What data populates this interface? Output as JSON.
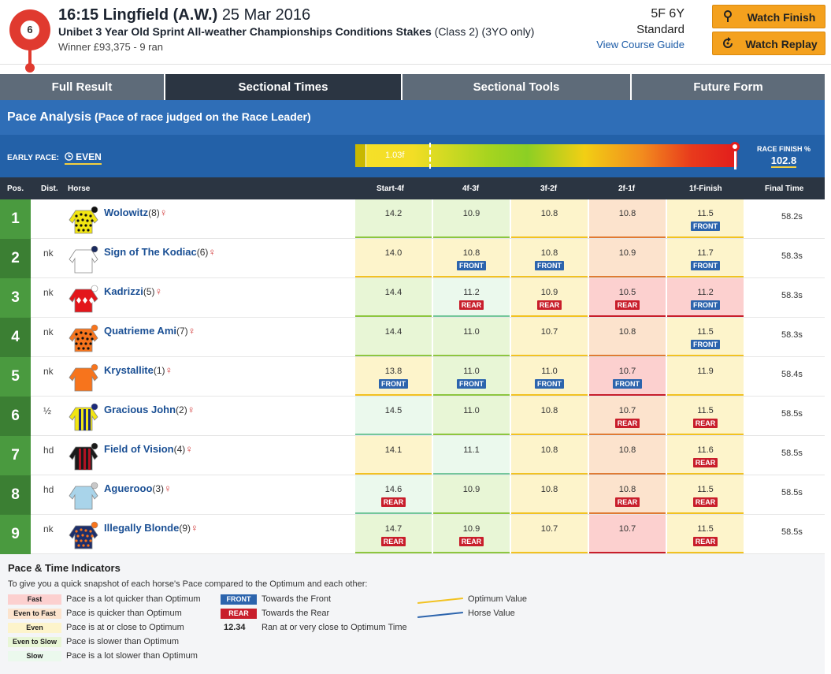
{
  "header": {
    "race_number": "6",
    "time_course": "16:15 Lingfield (A.W.)",
    "date": "25 Mar 2016",
    "race_name": "Unibet 3 Year Old Sprint All-weather Championships Conditions Stakes",
    "race_class": "(Class 2) (3YO only)",
    "winner_info": "Winner £93,375 - 9 ran",
    "distance": "5F 6Y",
    "going": "Standard",
    "course_guide_link": "View Course Guide",
    "watch_finish_label": "Watch Finish",
    "watch_replay_label": "Watch Replay",
    "watch_finish_icon": "location-pin-icon",
    "watch_replay_icon": "replay-icon"
  },
  "tabs": [
    {
      "label": "Full Result",
      "active": false
    },
    {
      "label": "Sectional Times",
      "active": true
    },
    {
      "label": "Sectional Tools",
      "active": false
    },
    {
      "label": "Future Form",
      "active": false
    }
  ],
  "pace": {
    "title": "Pace Analysis",
    "subtitle": "(Pace of race judged on the Race Leader)",
    "early_pace_label": "EARLY PACE:",
    "early_pace_value": "EVEN",
    "bar_marker_label": "1.03f",
    "race_finish_label": "RACE FINISH %",
    "race_finish_value": "102.8"
  },
  "table": {
    "columns": [
      "Pos.",
      "Dist.",
      "Horse",
      "Start-4f",
      "4f-3f",
      "3f-2f",
      "2f-1f",
      "1f-Finish",
      "Final Time"
    ],
    "rows": [
      {
        "pos": "1",
        "dist": "",
        "horse": "Wolowitz",
        "draw": "(8)",
        "silk": "yellow-black-spots",
        "final": "58.2s",
        "sections": [
          {
            "v": "14.2",
            "c": "ets",
            "tag": ""
          },
          {
            "v": "10.9",
            "c": "ets",
            "tag": ""
          },
          {
            "v": "10.8",
            "c": "even",
            "tag": ""
          },
          {
            "v": "10.8",
            "c": "etf",
            "tag": ""
          },
          {
            "v": "11.5",
            "c": "even",
            "tag": "FRONT"
          }
        ]
      },
      {
        "pos": "2",
        "dist": "nk",
        "horse": "Sign of The Kodiac",
        "draw": "(6)",
        "silk": "white",
        "final": "58.3s",
        "sections": [
          {
            "v": "14.0",
            "c": "even",
            "tag": ""
          },
          {
            "v": "10.8",
            "c": "even",
            "tag": "FRONT"
          },
          {
            "v": "10.8",
            "c": "even",
            "tag": "FRONT"
          },
          {
            "v": "10.9",
            "c": "etf",
            "tag": ""
          },
          {
            "v": "11.7",
            "c": "even",
            "tag": "FRONT"
          }
        ]
      },
      {
        "pos": "3",
        "dist": "nk",
        "horse": "Kadrizzi",
        "draw": "(5)",
        "silk": "red-white-diamonds",
        "final": "58.3s",
        "sections": [
          {
            "v": "14.4",
            "c": "ets",
            "tag": ""
          },
          {
            "v": "11.2",
            "c": "slow",
            "tag": "REAR"
          },
          {
            "v": "10.9",
            "c": "even",
            "tag": "REAR"
          },
          {
            "v": "10.5",
            "c": "fast",
            "tag": "REAR"
          },
          {
            "v": "11.2",
            "c": "fast",
            "tag": "FRONT"
          }
        ]
      },
      {
        "pos": "4",
        "dist": "nk",
        "horse": "Quatrieme Ami",
        "draw": "(7)",
        "silk": "orange-black-spots",
        "final": "58.3s",
        "sections": [
          {
            "v": "14.4",
            "c": "ets",
            "tag": ""
          },
          {
            "v": "11.0",
            "c": "ets",
            "tag": ""
          },
          {
            "v": "10.7",
            "c": "even",
            "tag": ""
          },
          {
            "v": "10.8",
            "c": "etf",
            "tag": ""
          },
          {
            "v": "11.5",
            "c": "even",
            "tag": "FRONT"
          }
        ]
      },
      {
        "pos": "5",
        "dist": "nk",
        "horse": "Krystallite",
        "draw": "(1)",
        "silk": "orange",
        "final": "58.4s",
        "sections": [
          {
            "v": "13.8",
            "c": "even",
            "tag": "FRONT"
          },
          {
            "v": "11.0",
            "c": "ets",
            "tag": "FRONT"
          },
          {
            "v": "11.0",
            "c": "even",
            "tag": "FRONT"
          },
          {
            "v": "10.7",
            "c": "fast",
            "tag": "FRONT"
          },
          {
            "v": "11.9",
            "c": "even",
            "tag": ""
          }
        ]
      },
      {
        "pos": "6",
        "dist": "½",
        "horse": "Gracious John",
        "draw": "(2)",
        "silk": "yellow-navy-stripes",
        "final": "58.5s",
        "sections": [
          {
            "v": "14.5",
            "c": "slow",
            "tag": ""
          },
          {
            "v": "11.0",
            "c": "ets",
            "tag": ""
          },
          {
            "v": "10.8",
            "c": "even",
            "tag": ""
          },
          {
            "v": "10.7",
            "c": "etf",
            "tag": "REAR"
          },
          {
            "v": "11.5",
            "c": "even",
            "tag": "REAR"
          }
        ]
      },
      {
        "pos": "7",
        "dist": "hd",
        "horse": "Field of Vision",
        "draw": "(4)",
        "silk": "black-red-stripes",
        "final": "58.5s",
        "sections": [
          {
            "v": "14.1",
            "c": "even",
            "tag": ""
          },
          {
            "v": "11.1",
            "c": "slow",
            "tag": ""
          },
          {
            "v": "10.8",
            "c": "even",
            "tag": ""
          },
          {
            "v": "10.8",
            "c": "etf",
            "tag": ""
          },
          {
            "v": "11.6",
            "c": "even",
            "tag": "REAR"
          }
        ]
      },
      {
        "pos": "8",
        "dist": "hd",
        "horse": "Aguerooo",
        "draw": "(3)",
        "silk": "light-blue",
        "final": "58.5s",
        "sections": [
          {
            "v": "14.6",
            "c": "slow",
            "tag": "REAR"
          },
          {
            "v": "10.9",
            "c": "ets",
            "tag": ""
          },
          {
            "v": "10.8",
            "c": "even",
            "tag": ""
          },
          {
            "v": "10.8",
            "c": "etf",
            "tag": "REAR"
          },
          {
            "v": "11.5",
            "c": "even",
            "tag": "REAR"
          }
        ]
      },
      {
        "pos": "9",
        "dist": "nk",
        "horse": "Illegally Blonde",
        "draw": "(9)",
        "silk": "navy-orange-spots",
        "final": "58.5s",
        "sections": [
          {
            "v": "14.7",
            "c": "ets",
            "tag": "REAR"
          },
          {
            "v": "10.9",
            "c": "ets",
            "tag": "REAR"
          },
          {
            "v": "10.7",
            "c": "even",
            "tag": ""
          },
          {
            "v": "10.7",
            "c": "fast",
            "tag": ""
          },
          {
            "v": "11.5",
            "c": "even",
            "tag": "REAR"
          }
        ]
      }
    ]
  },
  "legend": {
    "title": "Pace & Time Indicators",
    "subtitle": "To give you a quick snapshot of each horse's Pace compared to the Optimum and each other:",
    "swatches": [
      {
        "label": "Fast",
        "desc": "Pace is a lot quicker than Optimum",
        "c": "fast"
      },
      {
        "label": "Even to Fast",
        "desc": "Pace is quicker than Optimum",
        "c": "etf"
      },
      {
        "label": "Even",
        "desc": "Pace is at or close to Optimum",
        "c": "even"
      },
      {
        "label": "Even to Slow",
        "desc": "Pace is slower than Optimum",
        "c": "ets"
      },
      {
        "label": "Slow",
        "desc": "Pace is a lot slower than Optimum",
        "c": "slow"
      }
    ],
    "front_label": "FRONT",
    "front_desc": "Towards the Front",
    "rear_label": "REAR",
    "rear_desc": "Towards the Rear",
    "time_example": "12.34",
    "time_desc": "Ran at or very close to Optimum Time",
    "optimum_label": "Optimum Value",
    "horse_value_label": "Horse Value"
  },
  "colors": {
    "pos_green": "#4a9a3f",
    "pos_dark_green": "#3b7f33",
    "header_blue": "#2f6eb7",
    "tab_active": "#2b3542",
    "tab_inactive": "#5e6b79",
    "button_orange": "#f4a11e"
  }
}
